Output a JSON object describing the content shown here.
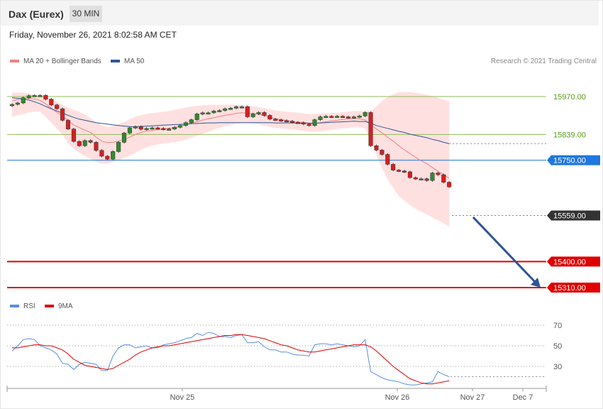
{
  "header": {
    "title": "Dax (Eurex)",
    "interval": "30 MIN"
  },
  "timestamp": "Friday, November 26, 2021 8:02:58 AM CET",
  "credit": "Research © 2021 Trading Central",
  "colors": {
    "ma20": "#f08080",
    "ma50": "#2f5597",
    "bands": "#ffe0e0",
    "up": "#2e8b2e",
    "down": "#d42020",
    "resistance": "#8fbc5a",
    "pivot": "#1f77e0",
    "support": "#e00000",
    "current": "#333333",
    "rsi": "#5b8de0",
    "rsi_ma": "#e00000",
    "arrow": "#2f5597"
  },
  "chart_data": [
    {
      "type": "line",
      "legend": [
        {
          "name": "MA 20 + Bollinger Bands",
          "color": "#f08080"
        },
        {
          "name": "MA 50",
          "color": "#2f5597"
        }
      ],
      "ylim": [
        15300,
        15990
      ],
      "x_ticks": [
        "Nov 25",
        "Nov 26",
        "Nov 27",
        "Dec 7"
      ],
      "levels": [
        {
          "label": "15970.00",
          "value": 15970,
          "kind": "resistance"
        },
        {
          "label": "15839.00",
          "value": 15839,
          "kind": "resistance"
        },
        {
          "label": "15750.00",
          "value": 15750,
          "kind": "pivot"
        },
        {
          "label": "15559.00",
          "value": 15559,
          "kind": "current"
        },
        {
          "label": "15400.00",
          "value": 15400,
          "kind": "support"
        },
        {
          "label": "15310.00",
          "value": 15310,
          "kind": "support"
        }
      ],
      "close": [
        15943,
        15948,
        15966,
        15973,
        15974,
        15974,
        15961,
        15941,
        15928,
        15888,
        15858,
        15815,
        15800,
        15818,
        15812,
        15784,
        15764,
        15754,
        15780,
        15812,
        15844,
        15862,
        15866,
        15857,
        15860,
        15862,
        15860,
        15857,
        15858,
        15864,
        15870,
        15880,
        15890,
        15910,
        15914,
        15914,
        15920,
        15922,
        15928,
        15930,
        15935,
        15935,
        15900,
        15910,
        15915,
        15905,
        15892,
        15890,
        15887,
        15885,
        15881,
        15880,
        15875,
        15870,
        15890,
        15900,
        15902,
        15901,
        15902,
        15900,
        15898,
        15900,
        15903,
        15915,
        15800,
        15785,
        15770,
        15736,
        15716,
        15713,
        15710,
        15690,
        15686,
        15686,
        15680,
        15706,
        15700,
        15674,
        15658
      ],
      "ma20": [
        15955,
        15960,
        15962,
        15964,
        15962,
        15957,
        15945,
        15930,
        15915,
        15903,
        15887,
        15872,
        15863,
        15854,
        15846,
        15830,
        15816,
        15811,
        15812,
        15816,
        15822,
        15830,
        15839,
        15846,
        15851,
        15853,
        15856,
        15857,
        15860,
        15863,
        15868,
        15873,
        15879,
        15883,
        15889,
        15893,
        15897,
        15901,
        15905,
        15908,
        15912,
        15914,
        15913,
        15911,
        15909,
        15904,
        15898,
        15894,
        15890,
        15887,
        15884,
        15882,
        15880,
        15878,
        15877,
        15880,
        15883,
        15886,
        15888,
        15891,
        15893,
        15894,
        15893,
        15889,
        15873,
        15858,
        15845,
        15830,
        15816,
        15800,
        15786,
        15773,
        15760,
        15748,
        15738,
        15725,
        15712,
        15700,
        15688
      ],
      "ma50": [
        15966,
        15964,
        15962,
        15958,
        15952,
        15945,
        15936,
        15928,
        15920,
        15913,
        15905,
        15898,
        15892,
        15888,
        15884,
        15880,
        15877,
        15875,
        15872,
        15870,
        15868,
        15866,
        15866,
        15867,
        15868,
        15869,
        15870,
        15871,
        15872,
        15873,
        15874,
        15875,
        15876,
        15877,
        15878,
        15879,
        15879,
        15880,
        15880,
        15880,
        15880,
        15880,
        15880,
        15880,
        15880,
        15880,
        15880,
        15879,
        15879,
        15879,
        15879,
        15878,
        15878,
        15878,
        15878,
        15879,
        15880,
        15881,
        15882,
        15883,
        15884,
        15885,
        15884,
        15884,
        15878,
        15870,
        15865,
        15860,
        15855,
        15850,
        15846,
        15840,
        15836,
        15832,
        15828,
        15822,
        15818,
        15812,
        15807
      ],
      "bb_upper": [
        15984,
        15984,
        15984,
        15980,
        15975,
        15972,
        15968,
        15962,
        15952,
        15941,
        15932,
        15924,
        15918,
        15908,
        15895,
        15882,
        15870,
        15865,
        15868,
        15875,
        15882,
        15892,
        15900,
        15906,
        15910,
        15913,
        15915,
        15918,
        15920,
        15924,
        15928,
        15932,
        15936,
        15938,
        15940,
        15941,
        15942,
        15942,
        15942,
        15942,
        15941,
        15941,
        15939,
        15937,
        15934,
        15930,
        15926,
        15922,
        15920,
        15918,
        15916,
        15914,
        15912,
        15910,
        15910,
        15911,
        15912,
        15913,
        15914,
        15916,
        15918,
        15920,
        15920,
        15920,
        15920,
        15935,
        15955,
        15968,
        15978,
        15985,
        15986,
        15985,
        15983,
        15980,
        15976,
        15972,
        15966,
        15960,
        15952
      ],
      "bb_lower": [
        15900,
        15905,
        15910,
        15915,
        15918,
        15918,
        15900,
        15880,
        15858,
        15838,
        15810,
        15790,
        15776,
        15764,
        15755,
        15745,
        15738,
        15738,
        15744,
        15750,
        15758,
        15766,
        15776,
        15786,
        15794,
        15800,
        15805,
        15808,
        15810,
        15812,
        15816,
        15820,
        15828,
        15834,
        15842,
        15848,
        15856,
        15862,
        15868,
        15872,
        15876,
        15878,
        15878,
        15877,
        15874,
        15870,
        15866,
        15862,
        15860,
        15858,
        15856,
        15854,
        15852,
        15850,
        15848,
        15850,
        15852,
        15856,
        15858,
        15860,
        15862,
        15864,
        15864,
        15860,
        15820,
        15770,
        15722,
        15684,
        15654,
        15626,
        15610,
        15595,
        15582,
        15572,
        15563,
        15552,
        15542,
        15532,
        15520
      ],
      "forecast": {
        "from": 15553,
        "to": 15310
      }
    },
    {
      "type": "line",
      "legend": [
        {
          "name": "RSI",
          "color": "#5b8de0"
        },
        {
          "name": "9MA",
          "color": "#e00000"
        }
      ],
      "ylim": [
        10,
        80
      ],
      "y_ticks": [
        70,
        50,
        30
      ],
      "rsi": [
        45,
        50,
        56,
        57,
        56,
        50,
        48,
        46,
        42,
        33,
        32,
        27,
        32,
        34,
        33,
        32,
        26,
        26,
        40,
        48,
        51,
        51,
        48,
        49,
        50,
        48,
        48,
        51,
        52,
        53,
        55,
        57,
        58,
        62,
        60,
        63,
        62,
        59,
        59,
        58,
        60,
        61,
        53,
        53,
        54,
        49,
        46,
        46,
        44,
        44,
        42,
        41,
        41,
        40,
        51,
        52,
        52,
        51,
        52,
        51,
        50,
        49,
        50,
        56,
        25,
        22,
        19,
        17,
        16,
        15,
        13,
        12,
        12,
        13,
        14,
        15,
        25,
        22,
        20
      ],
      "rsi_ma": [
        48,
        48,
        49,
        50,
        51,
        51,
        50,
        50,
        48,
        46,
        42,
        37,
        34,
        31,
        30,
        29,
        28,
        27,
        28,
        31,
        34,
        37,
        41,
        44,
        46,
        48,
        49,
        50,
        50,
        51,
        52,
        53,
        54,
        55,
        56,
        57,
        58,
        59,
        60,
        60,
        61,
        61,
        60,
        59,
        58,
        57,
        55,
        53,
        51,
        50,
        48,
        46,
        45,
        44,
        44,
        45,
        46,
        47,
        48,
        49,
        50,
        51,
        51,
        51,
        49,
        45,
        40,
        35,
        30,
        26,
        22,
        18,
        16,
        14,
        13,
        13,
        14,
        15,
        16
      ]
    }
  ]
}
